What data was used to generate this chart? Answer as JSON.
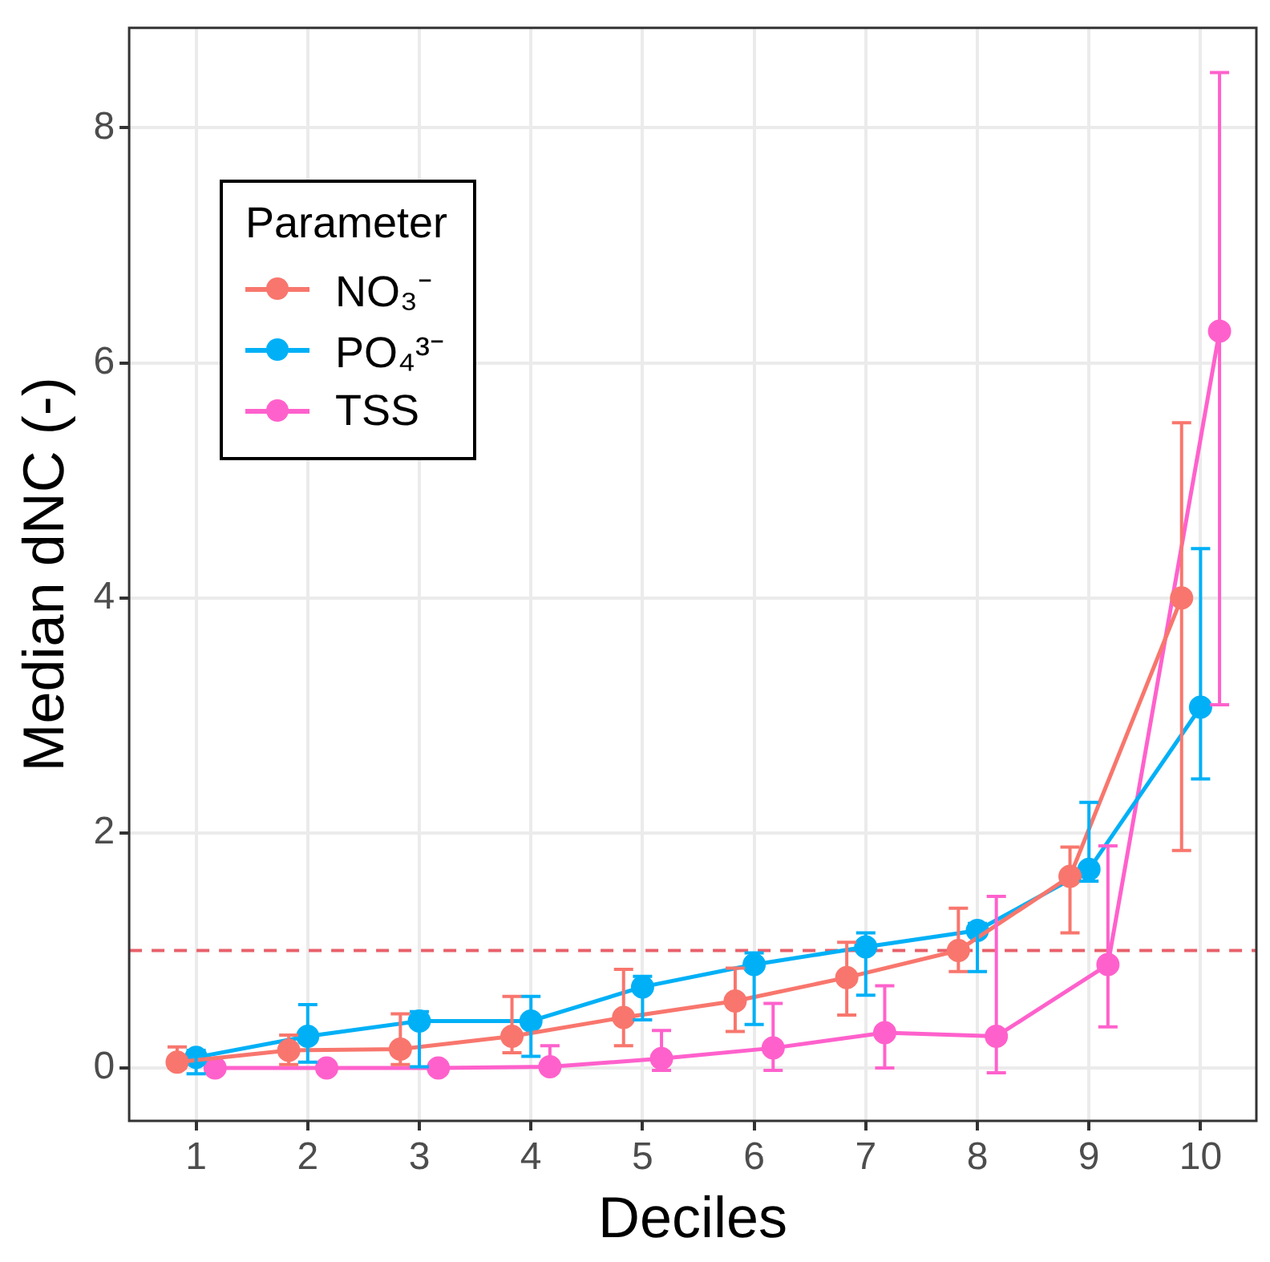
{
  "chart_data": {
    "type": "line",
    "xlabel": "Deciles",
    "ylabel": "Median dNC (-)",
    "legend_title": "Parameter",
    "legend": "top left",
    "grid": true,
    "marker": "circle",
    "line_style": "solid",
    "xlim": [
      0.4,
      10.5
    ],
    "xticks": [
      1,
      2,
      3,
      4,
      5,
      6,
      7,
      8,
      9,
      10
    ],
    "ylim": [
      -0.45,
      8.85
    ],
    "yticks": [
      0,
      2,
      4,
      6,
      8
    ],
    "ref_lines": [
      {
        "axis": "y",
        "value": 1,
        "color": "#e8606a",
        "line_style": "dashed"
      }
    ],
    "series": [
      {
        "name": "NO₃⁻",
        "color": "#f8766d",
        "x": [
          0.83,
          1.83,
          2.83,
          3.83,
          4.83,
          5.83,
          6.83,
          7.83,
          8.83,
          9.83
        ],
        "values": [
          0.05,
          0.15,
          0.16,
          0.27,
          0.43,
          0.57,
          0.77,
          1.0,
          1.63,
          4.0
        ],
        "errors": [
          [
            0.0,
            0.18
          ],
          [
            0.03,
            0.28
          ],
          [
            0.03,
            0.46
          ],
          [
            0.13,
            0.61
          ],
          [
            0.19,
            0.84
          ],
          [
            0.31,
            0.85
          ],
          [
            0.45,
            1.07
          ],
          [
            0.82,
            1.36
          ],
          [
            1.15,
            1.88
          ],
          [
            1.85,
            5.49
          ]
        ]
      },
      {
        "name": "PO₄³⁻",
        "color": "#00b0f6",
        "x": [
          1,
          2,
          3,
          4,
          5,
          6,
          7,
          8,
          9,
          10
        ],
        "values": [
          0.09,
          0.27,
          0.4,
          0.4,
          0.69,
          0.88,
          1.03,
          1.17,
          1.69,
          3.07
        ],
        "errors": [
          [
            -0.05,
            0.15
          ],
          [
            0.05,
            0.54
          ],
          [
            0.01,
            0.48
          ],
          [
            0.1,
            0.61
          ],
          [
            0.41,
            0.78
          ],
          [
            0.37,
            0.98
          ],
          [
            0.62,
            1.15
          ],
          [
            0.82,
            1.23
          ],
          [
            1.59,
            2.26
          ],
          [
            2.46,
            4.42
          ]
        ]
      },
      {
        "name": "TSS",
        "color": "#ff61cc",
        "x": [
          1.17,
          2.17,
          3.17,
          4.17,
          5.17,
          6.17,
          7.17,
          8.17,
          9.17,
          10.17
        ],
        "values": [
          0,
          0,
          0,
          0.01,
          0.08,
          0.17,
          0.3,
          0.27,
          0.88,
          6.27
        ],
        "errors": [
          null,
          null,
          null,
          [
            0.0,
            0.19
          ],
          [
            -0.02,
            0.32
          ],
          [
            -0.02,
            0.55
          ],
          [
            0.0,
            0.7
          ],
          [
            -0.04,
            1.46
          ],
          [
            0.35,
            1.89
          ],
          [
            3.09,
            8.47
          ]
        ]
      }
    ]
  }
}
